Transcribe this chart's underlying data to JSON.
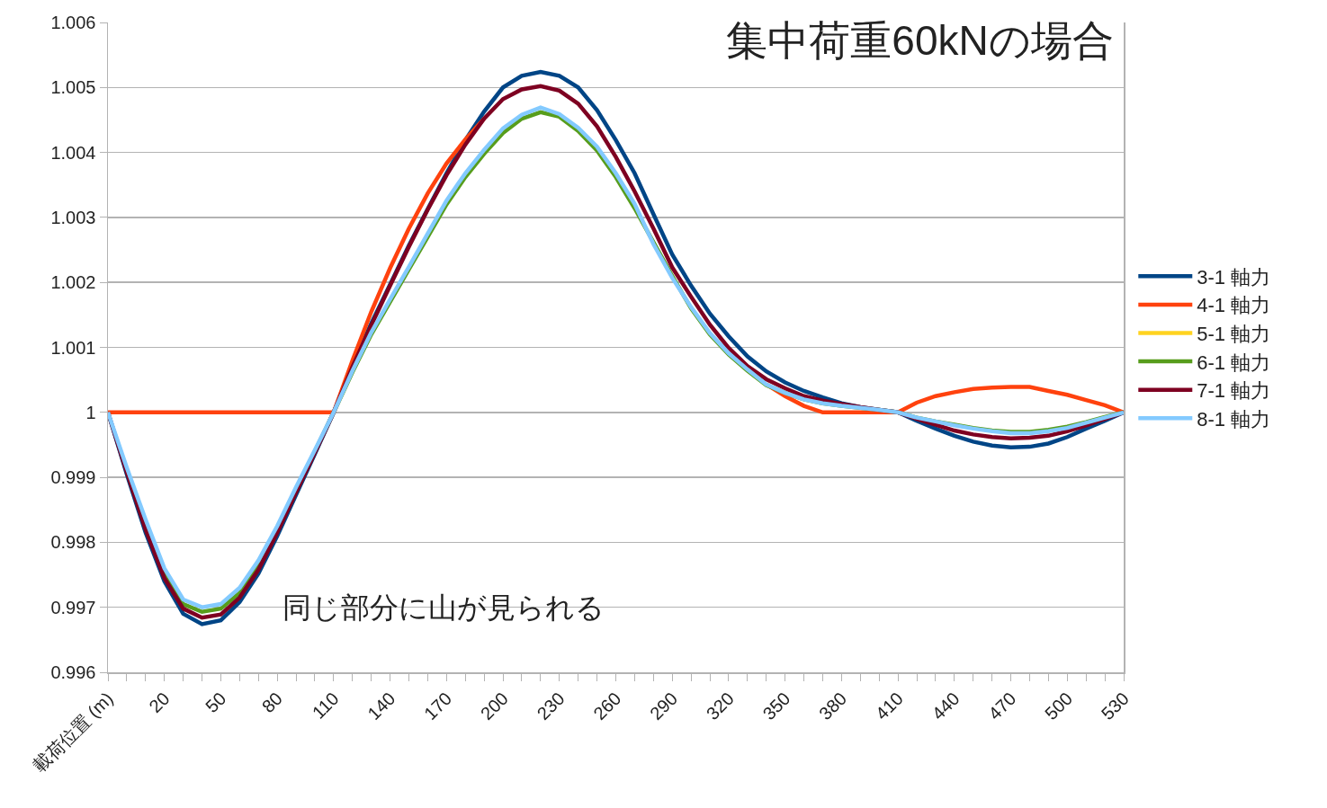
{
  "chart_data": {
    "type": "line",
    "title": "集中荷重60kNの場合",
    "categories": [
      "載荷位置 (m)",
      null,
      null,
      "20",
      null,
      null,
      "50",
      null,
      null,
      "80",
      null,
      null,
      "110",
      null,
      null,
      "140",
      null,
      null,
      "170",
      null,
      null,
      "200",
      null,
      null,
      "230",
      null,
      null,
      "260",
      null,
      null,
      "290",
      null,
      null,
      "320",
      null,
      null,
      "350",
      null,
      null,
      "380",
      null,
      null,
      "410",
      null,
      null,
      "440",
      null,
      null,
      "470",
      null,
      null,
      "500",
      null,
      null,
      "530"
    ],
    "ylim": [
      0.996,
      1.006
    ],
    "yticks": [
      0.996,
      0.997,
      0.998,
      0.999,
      1,
      1.001,
      1.002,
      1.003,
      1.004,
      1.005,
      1.006
    ],
    "grid": "y",
    "legend": "right",
    "marker": "none",
    "line_style": "solid",
    "annotations": [
      "同じ部分に山が見られる"
    ],
    "series": [
      {
        "name": "3-1 軸力",
        "color": "#004586",
        "values": [
          1,
          0.99905,
          0.99815,
          0.9974,
          0.9969,
          0.99674,
          0.9968,
          0.99708,
          0.99752,
          0.9981,
          0.99873,
          0.99936,
          1,
          1.00073,
          1.00137,
          1.00197,
          1.00257,
          1.00313,
          1.00368,
          1.00419,
          1.00463,
          1.005,
          1.00518,
          1.00524,
          1.00518,
          1.005,
          1.00465,
          1.00419,
          1.00368,
          1.00305,
          1.00243,
          1.00195,
          1.00152,
          1.00117,
          1.00086,
          1.00063,
          1.00046,
          1.00033,
          1.00023,
          1.00014,
          1.00008,
          1.00004,
          1,
          0.99987,
          0.99975,
          0.99964,
          0.99955,
          0.99949,
          0.99946,
          0.99947,
          0.99952,
          0.99962,
          0.99975,
          0.99987,
          1
        ]
      },
      {
        "name": "4-1 軸力",
        "color": "#ff420e",
        "values": [
          1,
          1,
          1,
          1,
          1,
          1,
          1,
          1,
          1,
          1,
          1,
          1,
          1,
          1.0008,
          1.00155,
          1.00222,
          1.00283,
          1.00337,
          1.00383,
          1.0042,
          1.00452,
          null,
          null,
          null,
          null,
          null,
          null,
          null,
          null,
          null,
          null,
          null,
          null,
          null,
          null,
          1.00043,
          1.00025,
          1.0001,
          1,
          1,
          1,
          1,
          1,
          1.00015,
          1.00025,
          1.00031,
          1.00036,
          1.00038,
          1.00039,
          1.00039,
          1.00033,
          1.00027,
          1.00019,
          1.00011,
          1
        ]
      },
      {
        "name": "5-1 軸力",
        "color": "#ffd320",
        "values": [
          null,
          null,
          null,
          null,
          null,
          null,
          null,
          null,
          null,
          null,
          null,
          null,
          null,
          null,
          null,
          null,
          null,
          null,
          null,
          null,
          null,
          null,
          null,
          null,
          null,
          null,
          null,
          null,
          null,
          null,
          null,
          null,
          null,
          null,
          null,
          null,
          null,
          null,
          null,
          null,
          null,
          null,
          null,
          null,
          null,
          null,
          null,
          null,
          null,
          null,
          null,
          null,
          null,
          null,
          null
        ]
      },
      {
        "name": "6-1 軸力",
        "color": "#579d1c",
        "values": [
          null,
          null,
          0.99828,
          0.99752,
          0.99705,
          0.99693,
          0.99698,
          0.99722,
          0.99765,
          0.9982,
          0.99881,
          0.9994,
          1,
          1.00062,
          1.0012,
          1.0017,
          1.0022,
          1.0027,
          1.0032,
          1.00362,
          1.00398,
          1.0043,
          1.00452,
          1.00462,
          1.00455,
          1.00433,
          1.00403,
          1.00362,
          1.00314,
          1.00262,
          1.0021,
          1.0016,
          1.0012,
          1.00089,
          1.00064,
          1.00042,
          1.0003,
          1.0002,
          1.00014,
          1.0001,
          1.00007,
          1.00004,
          1,
          0.99992,
          0.99986,
          0.99981,
          0.99976,
          0.99972,
          0.9997,
          0.9997,
          0.99973,
          0.99978,
          0.99985,
          0.99993,
          1
        ]
      },
      {
        "name": "7-1 軸力",
        "color": "#7e0021",
        "values": [
          1,
          0.99908,
          0.9982,
          0.99745,
          0.99698,
          0.99684,
          0.99689,
          0.99715,
          0.99758,
          0.99815,
          0.99877,
          0.99938,
          1,
          1.0007,
          1.00134,
          1.00195,
          1.00255,
          1.00312,
          1.00365,
          1.00412,
          1.00452,
          1.00482,
          1.00497,
          1.00502,
          1.00495,
          1.00475,
          1.0044,
          1.00393,
          1.0034,
          1.00283,
          1.00223,
          1.00178,
          1.00135,
          1.00099,
          1.00071,
          1.00051,
          1.00037,
          1.00025,
          1.00018,
          1.00013,
          1.00008,
          1.00004,
          1,
          0.9999,
          0.99981,
          0.99972,
          0.99966,
          0.99962,
          0.9996,
          0.99961,
          0.99964,
          0.99971,
          0.9998,
          0.9999,
          1
        ]
      },
      {
        "name": "8-1 軸力",
        "color": "#83caff",
        "values": [
          1,
          0.99915,
          0.99835,
          0.9976,
          0.99712,
          0.997,
          0.99705,
          0.9973,
          0.99772,
          0.99825,
          0.99885,
          0.99942,
          1,
          1.00064,
          1.00123,
          1.00174,
          1.00224,
          1.00275,
          1.00326,
          1.00368,
          1.00404,
          1.00437,
          1.00458,
          1.00469,
          1.00459,
          1.00438,
          1.00409,
          1.00368,
          1.00321,
          1.00259,
          1.00207,
          1.00162,
          1.00122,
          1.00091,
          1.00066,
          1.00043,
          1.0003,
          1.0002,
          1.00014,
          1.0001,
          1.00007,
          1.00004,
          1,
          0.99992,
          0.99986,
          0.9998,
          0.99975,
          0.99971,
          0.99968,
          0.99968,
          0.99971,
          0.99976,
          0.99984,
          0.99992,
          1
        ]
      }
    ]
  }
}
